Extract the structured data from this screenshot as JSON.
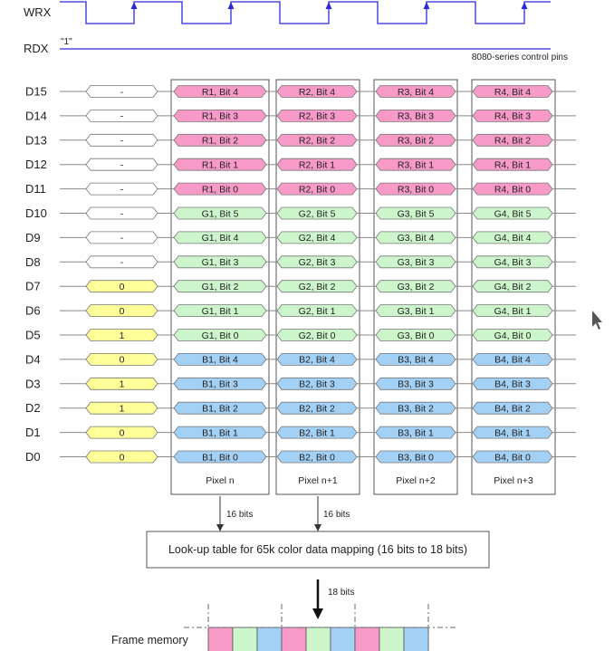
{
  "control": {
    "wrx_label": "WRX",
    "rdx_label": "RDX",
    "rdx_value": "\"1\"",
    "caption": "8080-series control pins"
  },
  "colors": {
    "red": "#f79ac8",
    "green": "#ccf5cc",
    "blue": "#a3d0f5",
    "yellow": "#ffff99",
    "none": "#ffffff",
    "line": "#888888",
    "wave": "#2b2bd4"
  },
  "rows": [
    {
      "pin": "D15",
      "prefix": "-",
      "prefix_color": "none",
      "bits": [
        "R1, Bit 4",
        "R2, Bit 4",
        "R3, Bit 4",
        "R4, Bit 4"
      ],
      "color": "red"
    },
    {
      "pin": "D14",
      "prefix": "-",
      "prefix_color": "none",
      "bits": [
        "R1, Bit 3",
        "R2, Bit 3",
        "R3, Bit 3",
        "R4, Bit 3"
      ],
      "color": "red"
    },
    {
      "pin": "D13",
      "prefix": "-",
      "prefix_color": "none",
      "bits": [
        "R1, Bit 2",
        "R2, Bit 2",
        "R3, Bit 2",
        "R4, Bit 2"
      ],
      "color": "red"
    },
    {
      "pin": "D12",
      "prefix": "-",
      "prefix_color": "none",
      "bits": [
        "R1, Bit 1",
        "R2, Bit 1",
        "R3, Bit 1",
        "R4, Bit 1"
      ],
      "color": "red"
    },
    {
      "pin": "D11",
      "prefix": "-",
      "prefix_color": "none",
      "bits": [
        "R1, Bit 0",
        "R2, Bit 0",
        "R3, Bit 0",
        "R4, Bit 0"
      ],
      "color": "red"
    },
    {
      "pin": "D10",
      "prefix": "-",
      "prefix_color": "none",
      "bits": [
        "G1, Bit 5",
        "G2, Bit 5",
        "G3, Bit 5",
        "G4, Bit 5"
      ],
      "color": "green"
    },
    {
      "pin": "D9",
      "prefix": "-",
      "prefix_color": "none",
      "bits": [
        "G1, Bit 4",
        "G2, Bit 4",
        "G3, Bit 4",
        "G4, Bit 4"
      ],
      "color": "green"
    },
    {
      "pin": "D8",
      "prefix": "-",
      "prefix_color": "none",
      "bits": [
        "G1, Bit 3",
        "G2, Bit 3",
        "G3, Bit 3",
        "G4, Bit 3"
      ],
      "color": "green"
    },
    {
      "pin": "D7",
      "prefix": "0",
      "prefix_color": "yellow",
      "bits": [
        "G1, Bit 2",
        "G2, Bit 2",
        "G3, Bit 2",
        "G4, Bit 2"
      ],
      "color": "green"
    },
    {
      "pin": "D6",
      "prefix": "0",
      "prefix_color": "yellow",
      "bits": [
        "G1, Bit 1",
        "G2, Bit 1",
        "G3, Bit 1",
        "G4, Bit 1"
      ],
      "color": "green"
    },
    {
      "pin": "D5",
      "prefix": "1",
      "prefix_color": "yellow",
      "bits": [
        "G1, Bit 0",
        "G2, Bit 0",
        "G3, Bit 0",
        "G4, Bit 0"
      ],
      "color": "green"
    },
    {
      "pin": "D4",
      "prefix": "0",
      "prefix_color": "yellow",
      "bits": [
        "B1, Bit 4",
        "B2, Bit 4",
        "B3, Bit 4",
        "B4, Bit 4"
      ],
      "color": "blue"
    },
    {
      "pin": "D3",
      "prefix": "1",
      "prefix_color": "yellow",
      "bits": [
        "B1, Bit 3",
        "B2, Bit 3",
        "B3, Bit 3",
        "B4, Bit 3"
      ],
      "color": "blue"
    },
    {
      "pin": "D2",
      "prefix": "1",
      "prefix_color": "yellow",
      "bits": [
        "B1, Bit 2",
        "B2, Bit 2",
        "B3, Bit 2",
        "B4, Bit 2"
      ],
      "color": "blue"
    },
    {
      "pin": "D1",
      "prefix": "0",
      "prefix_color": "yellow",
      "bits": [
        "B1, Bit 1",
        "B2, Bit 1",
        "B3, Bit 1",
        "B4, Bit 1"
      ],
      "color": "blue"
    },
    {
      "pin": "D0",
      "prefix": "0",
      "prefix_color": "yellow",
      "bits": [
        "B1, Bit 0",
        "B2, Bit 0",
        "B3, Bit 0",
        "B4, Bit 0"
      ],
      "color": "blue"
    }
  ],
  "pixels": [
    "Pixel n",
    "Pixel n+1",
    "Pixel n+2",
    "Pixel n+3"
  ],
  "arrows": {
    "left_label": "16 bits",
    "right_label": "16 bits",
    "down_label": "18 bits"
  },
  "lut_label": "Look-up table for 65k color data mapping (16 bits to 18 bits)",
  "frame_memory": {
    "label": "Frame memory",
    "cells": [
      "red",
      "green",
      "blue",
      "red",
      "green",
      "blue",
      "red",
      "green",
      "blue"
    ]
  }
}
